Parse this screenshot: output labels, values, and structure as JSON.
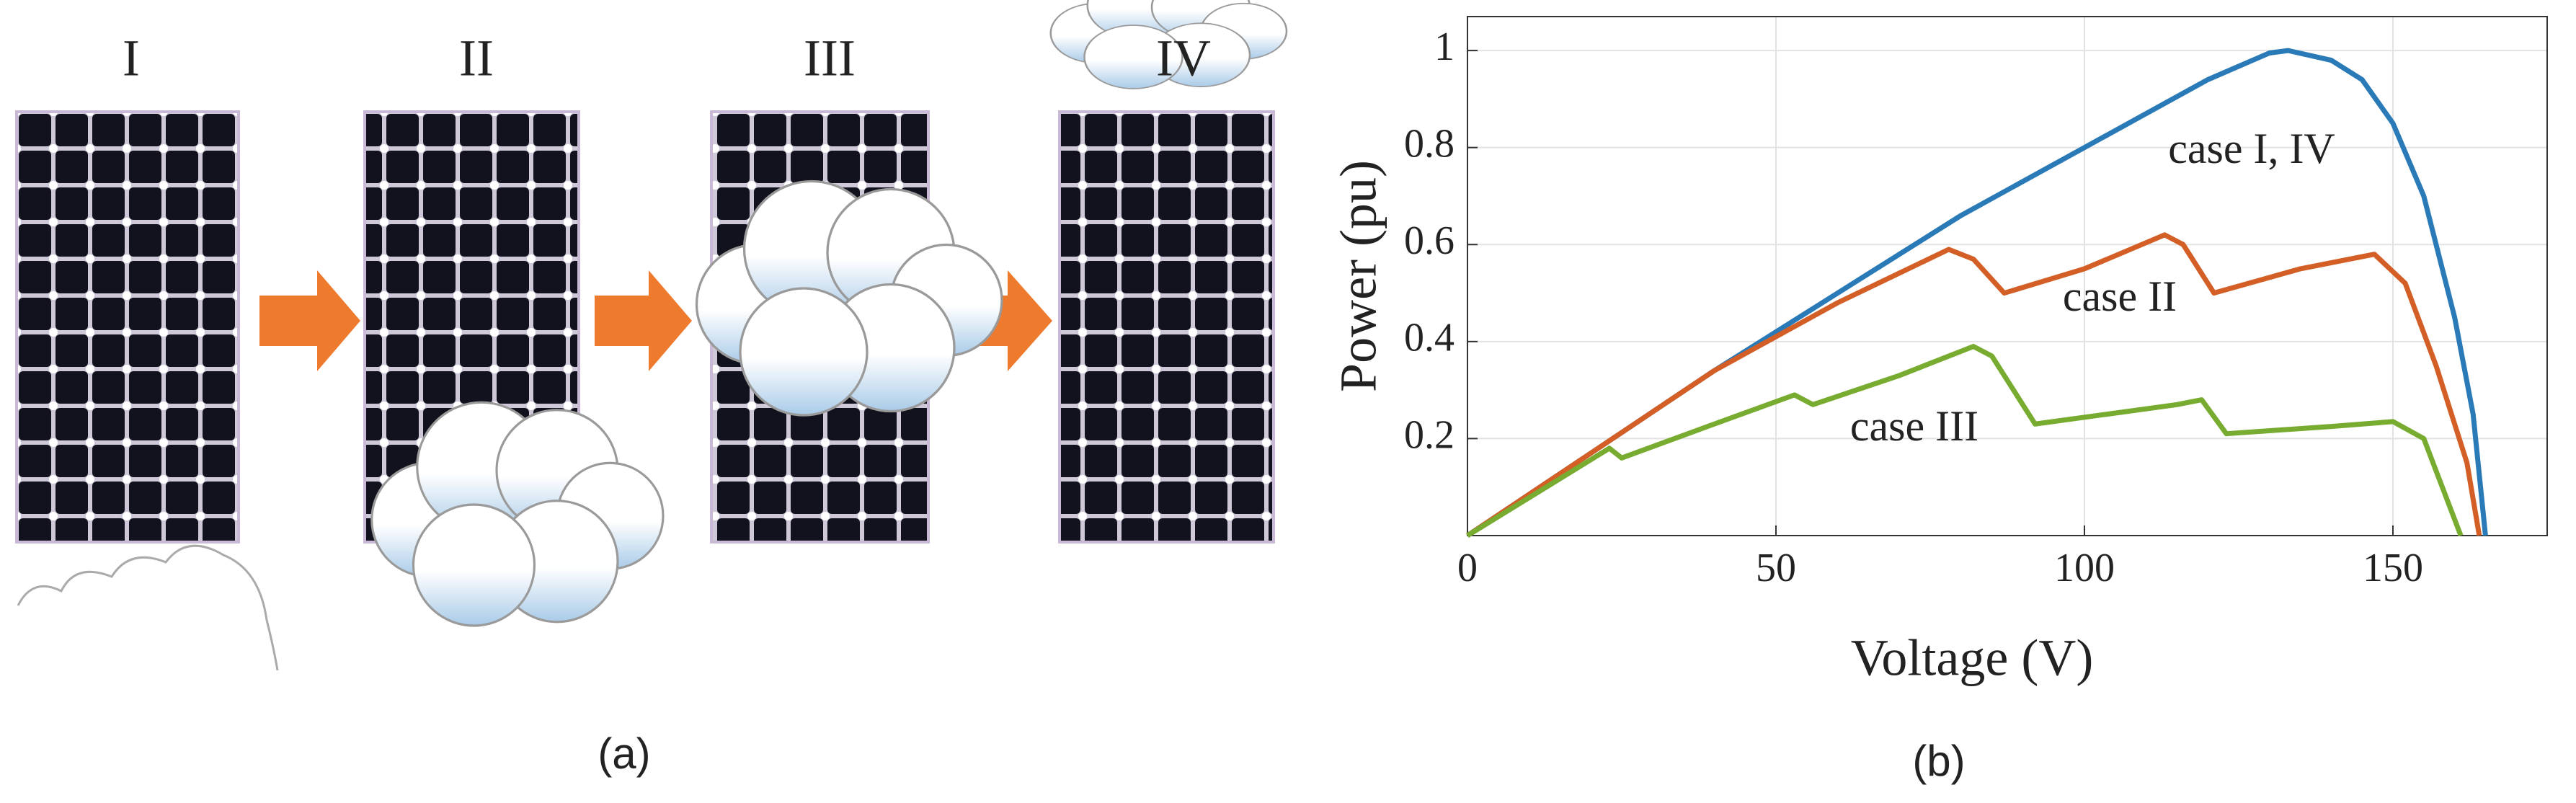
{
  "panel_a": {
    "labels": [
      "I",
      "II",
      "III",
      "IV"
    ],
    "caption": "(a)"
  },
  "chart_data": {
    "type": "line",
    "caption": "(b)",
    "x_label": "Voltage (V)",
    "y_label": "Power (pu)",
    "xlim": [
      0,
      175
    ],
    "ylim": [
      0,
      1.07
    ],
    "xticks": [
      0,
      50,
      100,
      150
    ],
    "yticks": [
      0.2,
      0.4,
      0.6,
      0.8,
      1
    ],
    "grid": true,
    "series": [
      {
        "name": "case I, IV",
        "color": "#2a7ab8",
        "x": [
          0,
          20,
          40,
          60,
          80,
          100,
          110,
          120,
          130,
          133,
          140,
          145,
          150,
          155,
          160,
          163,
          165
        ],
        "values": [
          0,
          0.17,
          0.34,
          0.5,
          0.66,
          0.8,
          0.87,
          0.94,
          0.995,
          1,
          0.98,
          0.94,
          0.85,
          0.7,
          0.45,
          0.25,
          0
        ]
      },
      {
        "name": "case II",
        "color": "#d35f27",
        "x": [
          0,
          20,
          40,
          60,
          78,
          82,
          87,
          100,
          113,
          116,
          121,
          135,
          147,
          152,
          157,
          162,
          164
        ],
        "values": [
          0,
          0.17,
          0.34,
          0.48,
          0.59,
          0.57,
          0.5,
          0.55,
          0.62,
          0.6,
          0.5,
          0.55,
          0.58,
          0.52,
          0.35,
          0.15,
          0
        ]
      },
      {
        "name": "case III",
        "color": "#77ac30",
        "x": [
          0,
          23,
          25,
          40,
          53,
          56,
          70,
          82,
          85,
          92,
          115,
          119,
          123,
          140,
          150,
          155,
          158,
          161
        ],
        "values": [
          0,
          0.18,
          0.16,
          0.23,
          0.29,
          0.27,
          0.33,
          0.39,
          0.37,
          0.23,
          0.27,
          0.28,
          0.21,
          0.225,
          0.235,
          0.2,
          0.1,
          0
        ]
      }
    ]
  }
}
